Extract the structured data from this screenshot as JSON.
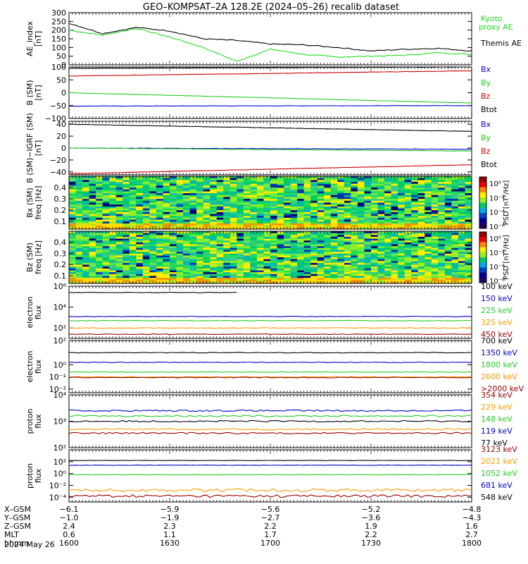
{
  "title": "GEO–KOMPSAT–2A 128.2E (2024–05–26) recalib dataset",
  "date_label": "2024 May 26",
  "chart_data": [
    {
      "type": "line",
      "panel": "ae",
      "ylabel": [
        "AE_index",
        "[nT]"
      ],
      "ylim": [
        0,
        300
      ],
      "yticks": [
        "300",
        "250",
        "200",
        "150",
        "100",
        "50",
        "0"
      ],
      "ytick_values": [
        300,
        250,
        200,
        150,
        100,
        50,
        0
      ],
      "x_minutes": [
        0,
        10,
        20,
        30,
        40,
        50,
        60,
        70,
        80,
        90,
        100,
        110,
        120
      ],
      "series": [
        {
          "name": "Kyoto",
          "name2": "proxy AE",
          "color": "#22dd22",
          "values": [
            200,
            170,
            210,
            160,
            100,
            20,
            90,
            60,
            45,
            50,
            55,
            70,
            60
          ]
        },
        {
          "name": "Themis AE",
          "color": "#000000",
          "values": [
            240,
            180,
            215,
            195,
            150,
            140,
            120,
            115,
            100,
            80,
            90,
            95,
            80
          ]
        }
      ]
    },
    {
      "type": "line",
      "panel": "bsm",
      "ylabel": [
        "B (SM)",
        "[nT]"
      ],
      "ylim": [
        -100,
        100
      ],
      "yticks": [
        "100",
        "50",
        "0",
        "−50",
        "−100"
      ],
      "ytick_values": [
        100,
        50,
        0,
        -50,
        -100
      ],
      "series": [
        {
          "name": "Bx",
          "color": "#0000cc",
          "start": -52,
          "end": -50
        },
        {
          "name": "By",
          "color": "#22cc22",
          "start": 0,
          "end": -40
        },
        {
          "name": "Bz",
          "color": "#cc0000",
          "start": 65,
          "end": 85
        },
        {
          "name": "Btot",
          "color": "#000000",
          "start": 95,
          "end": 100
        }
      ]
    },
    {
      "type": "line",
      "panel": "bigrf",
      "ylabel": [
        "B (SM)−IGRF (SM)",
        "[nT]"
      ],
      "ylim": [
        -45,
        45
      ],
      "yticks": [
        "40",
        "20",
        "0",
        "−20",
        "−40"
      ],
      "ytick_values": [
        40,
        20,
        0,
        -20,
        -40
      ],
      "series": [
        {
          "name": "Bx",
          "color": "#0000cc",
          "start": 0,
          "end": -2
        },
        {
          "name": "By",
          "color": "#22cc22",
          "start": 0,
          "end": -5
        },
        {
          "name": "Bz",
          "color": "#cc0000",
          "start": -43,
          "end": -28
        },
        {
          "name": "Btot",
          "color": "#000000",
          "start": 40,
          "end": 28
        }
      ]
    },
    {
      "type": "heatmap",
      "panel": "bxspec",
      "ylabel": [
        "Bx (SM)",
        "freq [Hz]"
      ],
      "ylim": [
        0.03,
        0.5
      ],
      "yticks": [
        "0.4",
        "0.3",
        "0.2",
        "0.1"
      ],
      "ytick_values": [
        0.4,
        0.3,
        0.2,
        0.1
      ],
      "colorbar_label": "PSD [nT²/Hz]",
      "colorbar_ticks": [
        "10⁰",
        "10⁻²",
        "10⁻⁴",
        "10⁻⁶"
      ]
    },
    {
      "type": "heatmap",
      "panel": "bzspec",
      "ylabel": [
        "Bz (SM)",
        "freq [Hz]"
      ],
      "ylim": [
        0.03,
        0.5
      ],
      "yticks": [
        "0.4",
        "0.3",
        "0.2",
        "0.1"
      ],
      "ytick_values": [
        0.4,
        0.3,
        0.2,
        0.1
      ],
      "colorbar_label": "PSD [nT²/Hz]",
      "colorbar_ticks": [
        "10⁰",
        "10⁻²",
        "10⁻⁴",
        "10⁻⁶"
      ]
    },
    {
      "type": "line",
      "panel": "elec1",
      "ylabel": [
        "electron",
        "flux"
      ],
      "log": true,
      "ylim": [
        1,
        6
      ],
      "yticks": [
        "10⁶",
        "10⁴",
        "10²"
      ],
      "ytick_values": [
        6,
        4,
        2
      ],
      "series": [
        {
          "name": "100 keV",
          "color": "#000000",
          "level": 5.4,
          "end": 5.4,
          "partial": 0.42
        },
        {
          "name": "150 keV",
          "color": "#0000cc",
          "level": 3.1
        },
        {
          "name": "225 keV",
          "color": "#22cc22",
          "level": 2.7
        },
        {
          "name": "325 keV",
          "color": "#ff9900",
          "level": 2.0
        },
        {
          "name": "450 keV",
          "color": "#990000",
          "level": 1.4
        }
      ]
    },
    {
      "type": "line",
      "panel": "elec2",
      "ylabel": [
        "electron",
        "flux"
      ],
      "log": true,
      "ylim": [
        -2.3,
        2
      ],
      "yticks": [
        "10²",
        "10⁰",
        "10⁻¹",
        "10⁻²"
      ],
      "ytick_values": [
        2,
        0,
        -1,
        -2
      ],
      "series": [
        {
          "name": "700 keV",
          "color": "#000000",
          "level": 1.0
        },
        {
          "name": "1350 keV",
          "color": "#0000cc",
          "level": 0.2
        },
        {
          "name": "1800 keV",
          "color": "#22cc22",
          "level": -0.6
        },
        {
          "name": "2600 keV",
          "color": "#ff9900",
          "level": -1.0
        },
        {
          "name": ">2000 keV",
          "color": "#990000",
          "level": -1.05
        }
      ]
    },
    {
      "type": "line",
      "panel": "prot1",
      "ylabel": [
        "proton",
        "flux"
      ],
      "log": true,
      "ylim": [
        2,
        4
      ],
      "yticks": [
        "10⁴",
        "10³",
        "10²"
      ],
      "ytick_values": [
        4,
        3,
        2
      ],
      "series": [
        {
          "name": "354 keV",
          "color": "#990000",
          "level": 2.55
        },
        {
          "name": "229 keV",
          "color": "#ff9900",
          "level": 2.7
        },
        {
          "name": "148 keV",
          "color": "#22cc22",
          "level": 3.2
        },
        {
          "name": "119 keV",
          "color": "#0000cc",
          "level": 3.4
        },
        {
          "name": "77 keV",
          "color": "#000000",
          "level": 3.0
        }
      ]
    },
    {
      "type": "line",
      "panel": "prot2",
      "ylabel": [
        "proton",
        "flux"
      ],
      "log": true,
      "ylim": [
        -4.8,
        4
      ],
      "yticks": [
        "10²",
        "10⁰",
        "10⁻²",
        "10⁻⁴"
      ],
      "ytick_values": [
        2,
        0,
        -2,
        -4
      ],
      "series": [
        {
          "name": "3123 keV",
          "color": "#990000",
          "level": -3.8
        },
        {
          "name": "2021 keV",
          "color": "#ff9900",
          "level": -2.8
        },
        {
          "name": "1052 keV",
          "color": "#22cc22",
          "level": -0.2
        },
        {
          "name": "681 keV",
          "color": "#0000cc",
          "level": 1.4
        },
        {
          "name": "548 keV",
          "color": "#000000",
          "level": 2.2
        }
      ]
    }
  ],
  "x_axis": {
    "rows": [
      "X–GSM",
      "Y–GSM",
      "Z–GSM",
      "MLT",
      "hhmm"
    ],
    "ticks": [
      [
        "−6.1",
        "−1.0",
        "2.4",
        "0.6",
        "1600"
      ],
      [
        "−5.9",
        "−1.9",
        "2.3",
        "1.1",
        "1630"
      ],
      [
        "−5.6",
        "−2.7",
        "2.2",
        "1.7",
        "1700"
      ],
      [
        "−5.2",
        "−3.6",
        "1.9",
        "2.2",
        "1730"
      ],
      [
        "−4.8",
        "−4.3",
        "1.6",
        "2.7",
        "1800"
      ]
    ]
  }
}
